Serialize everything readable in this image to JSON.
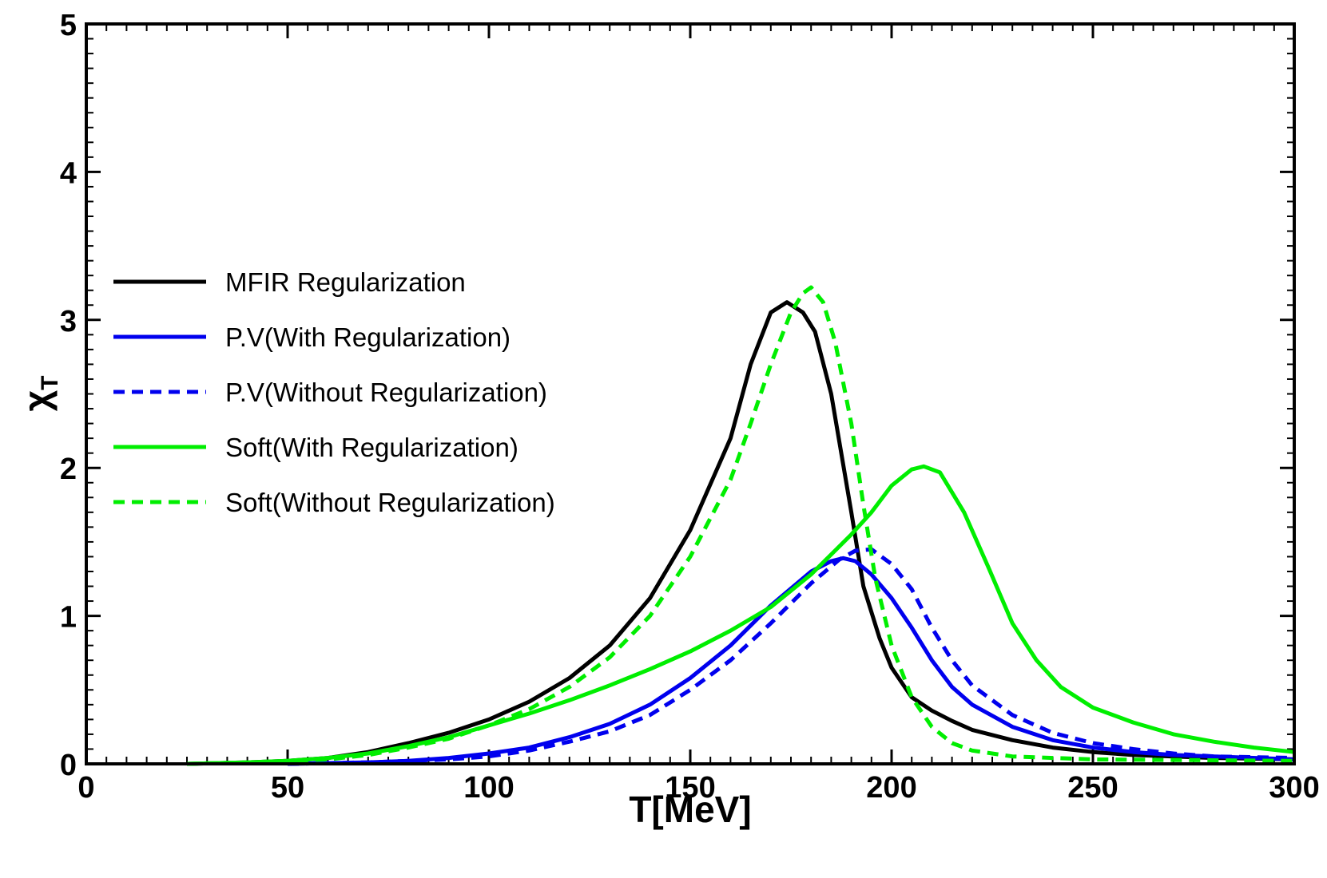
{
  "chart_data": {
    "type": "line",
    "xlabel": "T[MeV]",
    "ylabel_main": "χ",
    "ylabel_sub": "T",
    "xlim": [
      0,
      300
    ],
    "ylim": [
      0,
      5
    ],
    "x_ticks": [
      0,
      50,
      100,
      150,
      200,
      250,
      300
    ],
    "y_ticks": [
      0,
      1,
      2,
      3,
      4,
      5
    ],
    "grid": false,
    "legend_position": "left",
    "series": [
      {
        "name": "MFIR Regularization",
        "color": "#000000",
        "dash": "solid",
        "points": [
          [
            25,
            0.0
          ],
          [
            40,
            0.01
          ],
          [
            50,
            0.02
          ],
          [
            60,
            0.04
          ],
          [
            70,
            0.08
          ],
          [
            80,
            0.14
          ],
          [
            90,
            0.21
          ],
          [
            100,
            0.3
          ],
          [
            110,
            0.42
          ],
          [
            120,
            0.58
          ],
          [
            130,
            0.8
          ],
          [
            140,
            1.12
          ],
          [
            150,
            1.58
          ],
          [
            160,
            2.2
          ],
          [
            165,
            2.7
          ],
          [
            170,
            3.05
          ],
          [
            174,
            3.12
          ],
          [
            178,
            3.05
          ],
          [
            181,
            2.92
          ],
          [
            185,
            2.5
          ],
          [
            190,
            1.7
          ],
          [
            193,
            1.2
          ],
          [
            197,
            0.85
          ],
          [
            200,
            0.65
          ],
          [
            205,
            0.45
          ],
          [
            210,
            0.36
          ],
          [
            215,
            0.29
          ],
          [
            220,
            0.23
          ],
          [
            230,
            0.16
          ],
          [
            240,
            0.11
          ],
          [
            250,
            0.08
          ],
          [
            260,
            0.06
          ],
          [
            270,
            0.05
          ],
          [
            280,
            0.04
          ],
          [
            300,
            0.03
          ]
        ]
      },
      {
        "name": "P.V(With Regularization)",
        "color": "#0000ee",
        "dash": "solid",
        "points": [
          [
            50,
            0.0
          ],
          [
            70,
            0.01
          ],
          [
            80,
            0.02
          ],
          [
            90,
            0.04
          ],
          [
            100,
            0.07
          ],
          [
            110,
            0.11
          ],
          [
            120,
            0.18
          ],
          [
            130,
            0.27
          ],
          [
            140,
            0.4
          ],
          [
            150,
            0.58
          ],
          [
            160,
            0.8
          ],
          [
            170,
            1.07
          ],
          [
            180,
            1.3
          ],
          [
            185,
            1.37
          ],
          [
            188,
            1.39
          ],
          [
            191,
            1.37
          ],
          [
            195,
            1.28
          ],
          [
            200,
            1.12
          ],
          [
            205,
            0.92
          ],
          [
            210,
            0.7
          ],
          [
            215,
            0.52
          ],
          [
            220,
            0.4
          ],
          [
            230,
            0.25
          ],
          [
            240,
            0.16
          ],
          [
            250,
            0.11
          ],
          [
            260,
            0.08
          ],
          [
            270,
            0.06
          ],
          [
            280,
            0.05
          ],
          [
            300,
            0.03
          ]
        ]
      },
      {
        "name": "P.V(Without Regularization)",
        "color": "#0000ee",
        "dash": "dashed",
        "points": [
          [
            50,
            0.0
          ],
          [
            70,
            0.01
          ],
          [
            80,
            0.02
          ],
          [
            90,
            0.03
          ],
          [
            100,
            0.05
          ],
          [
            110,
            0.09
          ],
          [
            120,
            0.15
          ],
          [
            130,
            0.22
          ],
          [
            140,
            0.33
          ],
          [
            150,
            0.5
          ],
          [
            160,
            0.7
          ],
          [
            170,
            0.95
          ],
          [
            180,
            1.22
          ],
          [
            187,
            1.38
          ],
          [
            191,
            1.44
          ],
          [
            195,
            1.45
          ],
          [
            200,
            1.35
          ],
          [
            205,
            1.18
          ],
          [
            210,
            0.92
          ],
          [
            215,
            0.7
          ],
          [
            220,
            0.53
          ],
          [
            230,
            0.33
          ],
          [
            240,
            0.21
          ],
          [
            250,
            0.14
          ],
          [
            260,
            0.1
          ],
          [
            270,
            0.07
          ],
          [
            280,
            0.05
          ],
          [
            300,
            0.04
          ]
        ]
      },
      {
        "name": "Soft(With Regularization)",
        "color": "#00ee00",
        "dash": "solid",
        "points": [
          [
            25,
            0.0
          ],
          [
            40,
            0.01
          ],
          [
            50,
            0.02
          ],
          [
            60,
            0.04
          ],
          [
            70,
            0.07
          ],
          [
            80,
            0.12
          ],
          [
            90,
            0.18
          ],
          [
            100,
            0.26
          ],
          [
            110,
            0.34
          ],
          [
            120,
            0.43
          ],
          [
            130,
            0.53
          ],
          [
            140,
            0.64
          ],
          [
            150,
            0.76
          ],
          [
            160,
            0.9
          ],
          [
            170,
            1.06
          ],
          [
            180,
            1.28
          ],
          [
            190,
            1.55
          ],
          [
            195,
            1.7
          ],
          [
            200,
            1.88
          ],
          [
            205,
            1.99
          ],
          [
            208,
            2.01
          ],
          [
            212,
            1.97
          ],
          [
            218,
            1.7
          ],
          [
            224,
            1.33
          ],
          [
            230,
            0.95
          ],
          [
            236,
            0.7
          ],
          [
            242,
            0.52
          ],
          [
            250,
            0.38
          ],
          [
            260,
            0.28
          ],
          [
            270,
            0.2
          ],
          [
            280,
            0.15
          ],
          [
            290,
            0.11
          ],
          [
            300,
            0.08
          ]
        ]
      },
      {
        "name": "Soft(Without Regularization)",
        "color": "#00ee00",
        "dash": "dashed",
        "points": [
          [
            25,
            0.0
          ],
          [
            40,
            0.01
          ],
          [
            50,
            0.02
          ],
          [
            60,
            0.03
          ],
          [
            70,
            0.06
          ],
          [
            80,
            0.11
          ],
          [
            90,
            0.17
          ],
          [
            100,
            0.26
          ],
          [
            110,
            0.37
          ],
          [
            120,
            0.52
          ],
          [
            130,
            0.72
          ],
          [
            140,
            1.0
          ],
          [
            150,
            1.4
          ],
          [
            160,
            1.92
          ],
          [
            165,
            2.3
          ],
          [
            170,
            2.7
          ],
          [
            175,
            3.05
          ],
          [
            178,
            3.18
          ],
          [
            180,
            3.22
          ],
          [
            183,
            3.12
          ],
          [
            186,
            2.85
          ],
          [
            190,
            2.3
          ],
          [
            193,
            1.75
          ],
          [
            196,
            1.25
          ],
          [
            200,
            0.8
          ],
          [
            205,
            0.45
          ],
          [
            210,
            0.25
          ],
          [
            215,
            0.14
          ],
          [
            220,
            0.09
          ],
          [
            230,
            0.05
          ],
          [
            250,
            0.03
          ],
          [
            300,
            0.02
          ]
        ]
      }
    ]
  }
}
